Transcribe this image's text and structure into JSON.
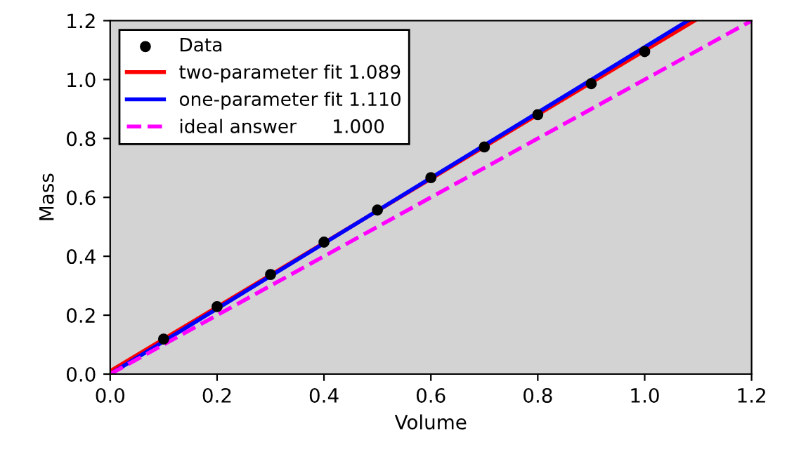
{
  "chart_data": {
    "type": "scatter",
    "xlabel": "Volume",
    "ylabel": "Mass",
    "xlim": [
      0,
      1.2
    ],
    "ylim": [
      0,
      1.2
    ],
    "xticks": [
      {
        "value": 0,
        "label": "0.0"
      },
      {
        "value": 0.2,
        "label": "0.2"
      },
      {
        "value": 0.4,
        "label": "0.4"
      },
      {
        "value": 0.6,
        "label": "0.6"
      },
      {
        "value": 0.8,
        "label": "0.8"
      },
      {
        "value": 1,
        "label": "1.0"
      },
      {
        "value": 1.2,
        "label": "1.2"
      }
    ],
    "yticks": [
      {
        "value": 0,
        "label": "0.0"
      },
      {
        "value": 0.2,
        "label": "0.2"
      },
      {
        "value": 0.4,
        "label": "0.4"
      },
      {
        "value": 0.6,
        "label": "0.6"
      },
      {
        "value": 0.8,
        "label": "0.8"
      },
      {
        "value": 1,
        "label": "1.0"
      },
      {
        "value": 1.2,
        "label": "1.2"
      }
    ],
    "grid": false,
    "legend": "top left",
    "series": [
      {
        "name": "Data",
        "color": "#000000",
        "marker": "circle",
        "x": [
          0.1,
          0.2,
          0.3,
          0.4,
          0.5,
          0.6,
          0.7,
          0.8,
          0.9,
          1.0
        ],
        "values": [
          0.119,
          0.229,
          0.338,
          0.448,
          0.557,
          0.667,
          0.771,
          0.881,
          0.986,
          1.095
        ]
      },
      {
        "name": "two-parameter fit 1.089",
        "type": "line",
        "color": "#ff0000",
        "line_style": "solid",
        "x": [
          0,
          1.093
        ],
        "values": [
          0.01,
          1.2
        ]
      },
      {
        "name": "one-parameter fit 1.110",
        "type": "line",
        "color": "#0000ff",
        "line_style": "solid",
        "x": [
          0,
          1.081
        ],
        "values": [
          0,
          1.2
        ]
      },
      {
        "name": "ideal answer      1.000",
        "type": "line",
        "color": "#ff00ff",
        "line_style": "dashed",
        "x": [
          0,
          1.2
        ],
        "values": [
          0,
          1.2
        ]
      }
    ]
  }
}
